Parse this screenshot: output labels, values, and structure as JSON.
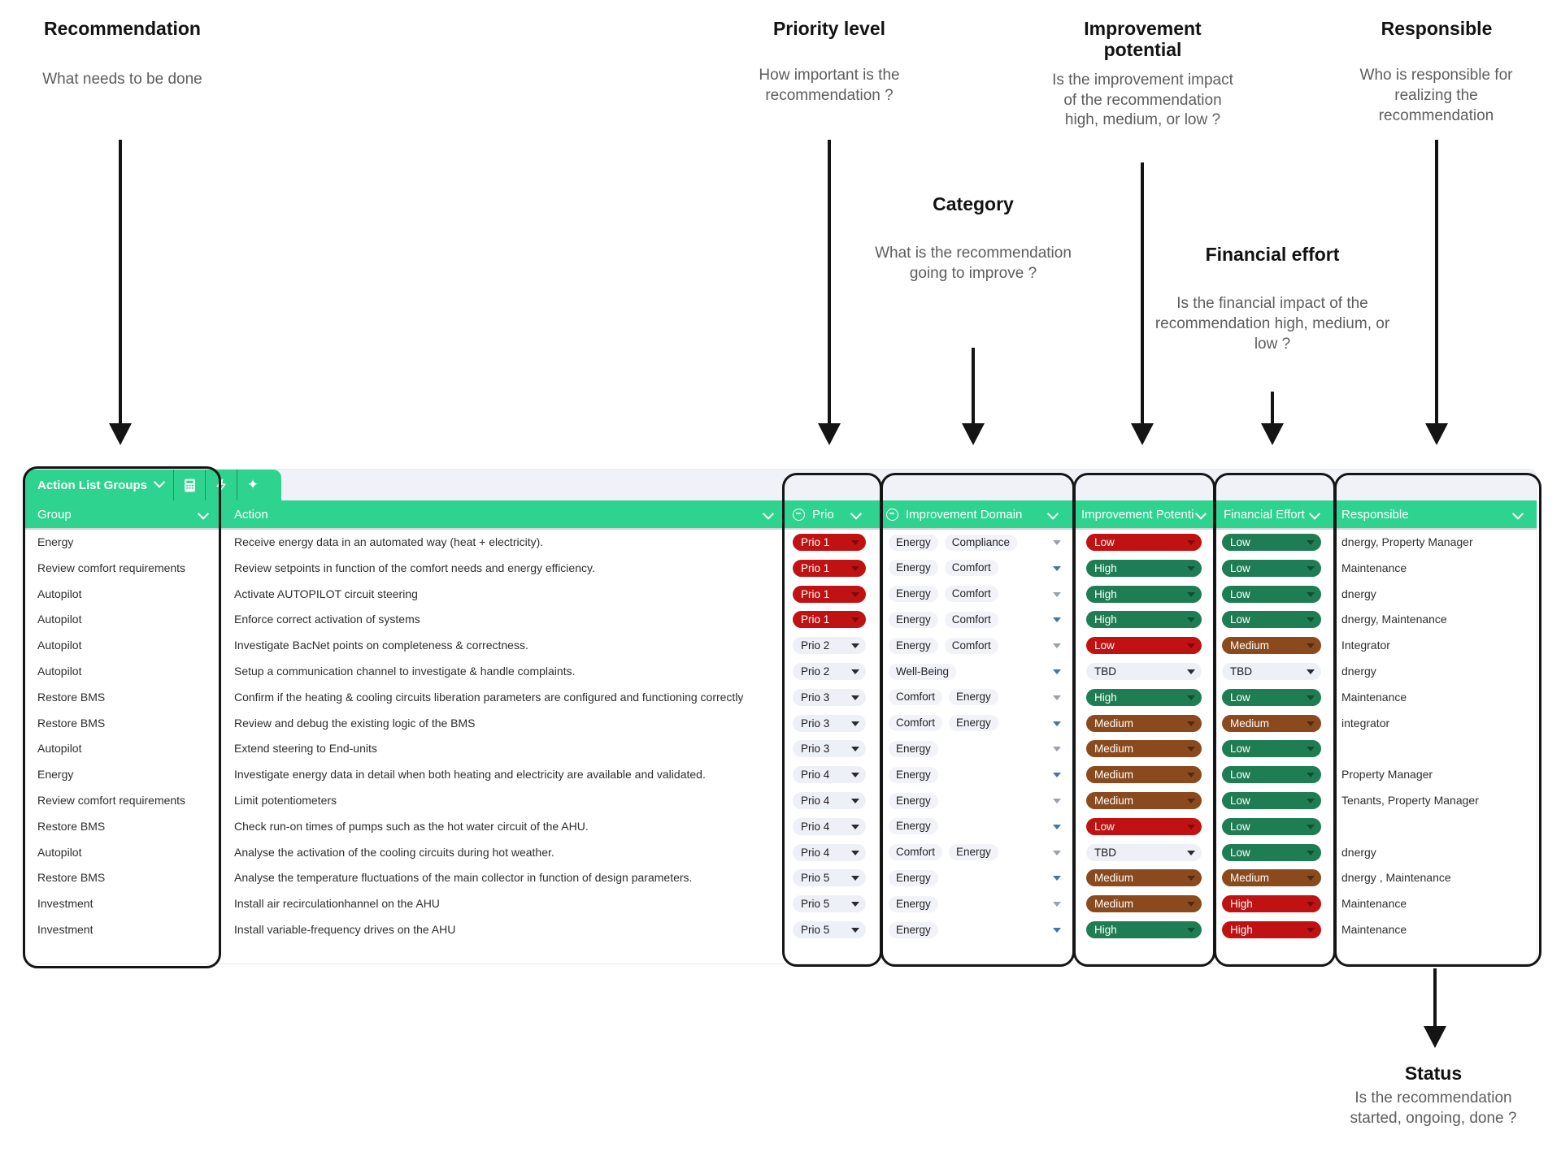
{
  "colors": {
    "accent_green": "#2FD390",
    "pill_red": "#C01212",
    "pill_green": "#1F7D53",
    "pill_brown": "#8A4A1D",
    "pill_light": "#EEF0F7"
  },
  "annotations": {
    "recommendation": {
      "title": "Recommendation",
      "description": "What needs to be done"
    },
    "priority": {
      "title": "Priority level",
      "description": "How important is the recommendation ?"
    },
    "category": {
      "title": "Category",
      "description": "What is the recommendation going to improve ?"
    },
    "improvement_potential": {
      "title": "Improvement potential",
      "description": "Is the improvement impact of the recommendation high, medium, or low ?"
    },
    "financial_effort": {
      "title": "Financial effort",
      "description": "Is the financial impact of the recommendation high, medium, or low ?"
    },
    "responsible": {
      "title": "Responsible",
      "description": "Who is responsible for realizing the recommendation"
    },
    "status": {
      "title": "Status",
      "description": "Is the recommendation started, ongoing, done ?"
    }
  },
  "toolbar": {
    "tab_label": "Action List Groups",
    "icons": [
      "chevron-down",
      "calculator",
      "lightning",
      "sparkle"
    ]
  },
  "table": {
    "columns": [
      {
        "label": "Group"
      },
      {
        "label": "Action"
      },
      {
        "label": "Prio",
        "type_icon": true
      },
      {
        "label": "Improvement Domain",
        "type_icon": true
      },
      {
        "label": "Improvement Potenti"
      },
      {
        "label": "Financial Effort"
      },
      {
        "label": "Responsible"
      }
    ],
    "rows": [
      {
        "group": "Energy",
        "action": "Receive energy data in an automated way (heat + electricity).",
        "prio": {
          "label": "Prio 1",
          "color": "red"
        },
        "domains": [
          "Energy",
          "Compliance"
        ],
        "potential": {
          "label": "Low",
          "color": "red"
        },
        "financial": {
          "label": "Low",
          "color": "green"
        },
        "responsible": "dnergy, Property Manager"
      },
      {
        "group": "Review comfort requirements",
        "action": "Review setpoints in function of the comfort needs and energy efficiency.",
        "prio": {
          "label": "Prio 1",
          "color": "red"
        },
        "domains": [
          "Energy",
          "Comfort"
        ],
        "potential": {
          "label": "High",
          "color": "green"
        },
        "financial": {
          "label": "Low",
          "color": "green"
        },
        "responsible": "Maintenance"
      },
      {
        "group": "Autopilot",
        "action": "Activate AUTOPILOT circuit steering",
        "prio": {
          "label": "Prio 1",
          "color": "red"
        },
        "domains": [
          "Energy",
          "Comfort"
        ],
        "potential": {
          "label": "High",
          "color": "green"
        },
        "financial": {
          "label": "Low",
          "color": "green"
        },
        "responsible": "dnergy"
      },
      {
        "group": "Autopilot",
        "action": "Enforce correct activation of systems",
        "prio": {
          "label": "Prio 1",
          "color": "red"
        },
        "domains": [
          "Energy",
          "Comfort"
        ],
        "potential": {
          "label": "High",
          "color": "green"
        },
        "financial": {
          "label": "Low",
          "color": "green"
        },
        "responsible": "dnergy, Maintenance"
      },
      {
        "group": "Autopilot",
        "action": "Investigate BacNet points on completeness & correctness.",
        "prio": {
          "label": "Prio 2",
          "color": "light"
        },
        "domains": [
          "Energy",
          "Comfort"
        ],
        "potential": {
          "label": "Low",
          "color": "red"
        },
        "financial": {
          "label": "Medium",
          "color": "brown"
        },
        "responsible": "Integrator"
      },
      {
        "group": "Autopilot",
        "action": "Setup a communication channel to investigate & handle complaints.",
        "prio": {
          "label": "Prio 2",
          "color": "light"
        },
        "domains": [
          "Well-Being"
        ],
        "potential": {
          "label": "TBD",
          "color": "light"
        },
        "financial": {
          "label": "TBD",
          "color": "light"
        },
        "responsible": "dnergy"
      },
      {
        "group": "Restore BMS",
        "action": "Confirm if the heating & cooling circuits liberation parameters are configured  and functioning correctly",
        "prio": {
          "label": "Prio 3",
          "color": "light"
        },
        "domains": [
          "Comfort",
          "Energy"
        ],
        "potential": {
          "label": "High",
          "color": "green"
        },
        "financial": {
          "label": "Low",
          "color": "green"
        },
        "responsible": "Maintenance"
      },
      {
        "group": "Restore BMS",
        "action": "Review and debug the existing logic of the BMS",
        "prio": {
          "label": "Prio 3",
          "color": "light"
        },
        "domains": [
          "Comfort",
          "Energy"
        ],
        "potential": {
          "label": "Medium",
          "color": "brown"
        },
        "financial": {
          "label": "Medium",
          "color": "brown"
        },
        "responsible": "integrator"
      },
      {
        "group": "Autopilot",
        "action": "Extend steering to End-units",
        "prio": {
          "label": "Prio 3",
          "color": "light"
        },
        "domains": [
          "Energy"
        ],
        "potential": {
          "label": "Medium",
          "color": "brown"
        },
        "financial": {
          "label": "Low",
          "color": "green"
        },
        "responsible": ""
      },
      {
        "group": "Energy",
        "action": "Investigate energy data in detail when both heating and electricity are available and validated.",
        "prio": {
          "label": "Prio 4",
          "color": "light"
        },
        "domains": [
          "Energy"
        ],
        "potential": {
          "label": "Medium",
          "color": "brown"
        },
        "financial": {
          "label": "Low",
          "color": "green"
        },
        "responsible": "Property Manager"
      },
      {
        "group": "Review comfort requirements",
        "action": "Limit potentiometers",
        "prio": {
          "label": "Prio 4",
          "color": "light"
        },
        "domains": [
          "Energy"
        ],
        "potential": {
          "label": "Medium",
          "color": "brown"
        },
        "financial": {
          "label": "Low",
          "color": "green"
        },
        "responsible": "Tenants, Property Manager"
      },
      {
        "group": "Restore BMS",
        "action": "Check run-on times of pumps such as the hot water circuit of the AHU.",
        "prio": {
          "label": "Prio 4",
          "color": "light"
        },
        "domains": [
          "Energy"
        ],
        "potential": {
          "label": "Low",
          "color": "red"
        },
        "financial": {
          "label": "Low",
          "color": "green"
        },
        "responsible": ""
      },
      {
        "group": "Autopilot",
        "action": "Analyse the activation of the cooling circuits during hot weather.",
        "prio": {
          "label": "Prio 4",
          "color": "light"
        },
        "domains": [
          "Comfort",
          "Energy"
        ],
        "potential": {
          "label": "TBD",
          "color": "light"
        },
        "financial": {
          "label": "Low",
          "color": "green"
        },
        "responsible": "dnergy"
      },
      {
        "group": "Restore BMS",
        "action": "Analyse the temperature fluctuations of the main collector in function of design parameters.",
        "prio": {
          "label": "Prio 5",
          "color": "light"
        },
        "domains": [
          "Energy"
        ],
        "potential": {
          "label": "Medium",
          "color": "brown"
        },
        "financial": {
          "label": "Medium",
          "color": "brown"
        },
        "responsible": "dnergy , Maintenance"
      },
      {
        "group": "Investment",
        "action": "Install air recirculationhannel on the AHU",
        "prio": {
          "label": "Prio 5",
          "color": "light"
        },
        "domains": [
          "Energy"
        ],
        "potential": {
          "label": "Medium",
          "color": "brown"
        },
        "financial": {
          "label": "High",
          "color": "red"
        },
        "responsible": "Maintenance"
      },
      {
        "group": "Investment",
        "action": "Install variable-frequency drives on the AHU",
        "prio": {
          "label": "Prio 5",
          "color": "light"
        },
        "domains": [
          "Energy"
        ],
        "potential": {
          "label": "High",
          "color": "green"
        },
        "financial": {
          "label": "High",
          "color": "red"
        },
        "responsible": "Maintenance"
      }
    ]
  }
}
